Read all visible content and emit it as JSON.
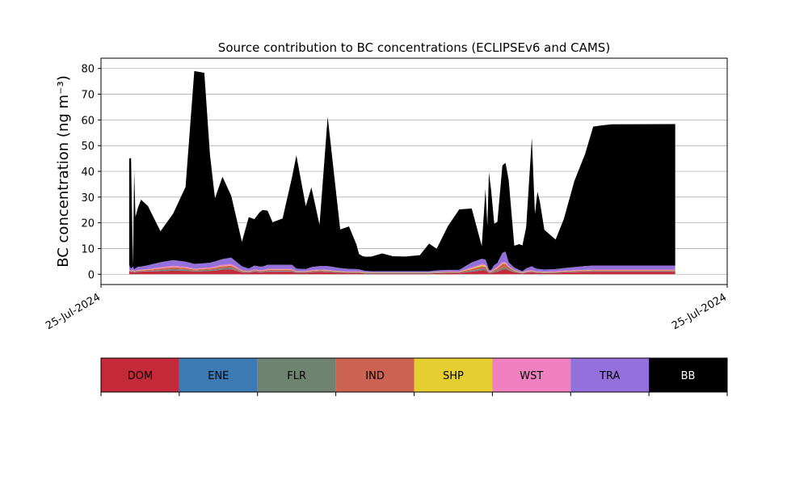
{
  "chart_data": {
    "type": "area",
    "stacked": true,
    "title": "Source contribution to BC concentrations (ECLIPSEv6 and CAMS)",
    "xlabel": "",
    "ylabel": "BC concentration (ng m⁻³)",
    "ylim": [
      -4,
      84
    ],
    "yticks": [
      0,
      10,
      20,
      30,
      40,
      50,
      60,
      70,
      80
    ],
    "xlim": [
      0,
      100
    ],
    "xtick_labels": [
      "25-Jul-2024",
      "25-Jul-2024"
    ],
    "grid": "horizontal",
    "colors": {
      "DOM": "#c52a3a",
      "ENE": "#3c7ab3",
      "FLR": "#6e8471",
      "IND": "#cc6352",
      "SHP": "#e5cf30",
      "WST": "#f080c0",
      "TRA": "#9370db",
      "BB": "#000000"
    },
    "legend": {
      "placement": "bottom-colorbar",
      "labels": [
        "DOM",
        "ENE",
        "FLR",
        "IND",
        "SHP",
        "WST",
        "TRA",
        "BB"
      ]
    },
    "x": [
      4.5,
      4.8,
      5.1,
      5.3,
      5.5,
      5.9,
      6.4,
      7.5,
      9.5,
      11.5,
      13.5,
      14.9,
      16.5,
      17.4,
      18.2,
      19.4,
      20.8,
      22.5,
      23.6,
      24.5,
      25.3,
      25.8,
      26.6,
      27.4,
      29.0,
      30.5,
      31.2,
      32.7,
      33.6,
      34.9,
      36.2,
      38.2,
      39.6,
      40.8,
      41.2,
      41.7,
      42.2,
      43.2,
      44.9,
      46.6,
      48.6,
      50.9,
      52.4,
      53.6,
      55.4,
      57.2,
      59.2,
      60.8,
      61.4,
      61.7,
      61.95,
      62.3,
      62.8,
      63.3,
      64.1,
      64.6,
      65.1,
      66.0,
      66.8,
      67.3,
      67.9,
      68.8,
      69.3,
      69.7,
      70.1,
      70.8,
      72.6,
      73.9,
      75.6,
      77.3,
      78.6,
      80.1,
      81.6,
      91.7
    ],
    "series": [
      {
        "name": "DOM",
        "values": [
          1.2,
          0.8,
          1.0,
          0.6,
          0.8,
          0.9,
          1.0,
          1.1,
          1.2,
          1.4,
          1.3,
          1.1,
          1.2,
          1.3,
          1.4,
          1.8,
          1.9,
          0.7,
          0.6,
          1.0,
          0.8,
          0.8,
          1.0,
          1.0,
          1.0,
          1.0,
          0.6,
          0.6,
          0.8,
          0.9,
          0.8,
          0.6,
          0.5,
          0.5,
          0.5,
          0.4,
          0.3,
          0.3,
          0.3,
          0.3,
          0.3,
          0.3,
          0.3,
          0.4,
          0.5,
          0.5,
          1.0,
          1.5,
          1.5,
          1.0,
          0.5,
          0.5,
          0.8,
          1.0,
          1.8,
          2.0,
          1.5,
          0.8,
          0.5,
          0.3,
          0.6,
          0.8,
          0.6,
          0.5,
          0.5,
          0.4,
          0.5,
          0.7,
          0.8,
          0.9,
          1.0,
          1.0,
          1.0,
          1.0
        ]
      },
      {
        "name": "ENE",
        "values": [
          0.1,
          0.1,
          0.1,
          0.1,
          0.1,
          0.1,
          0.1,
          0.1,
          0.1,
          0.1,
          0.1,
          0.1,
          0.1,
          0.1,
          0.1,
          0.1,
          0.1,
          0.1,
          0.1,
          0.1,
          0.1,
          0.1,
          0.1,
          0.1,
          0.1,
          0.1,
          0.1,
          0.1,
          0.1,
          0.1,
          0.1,
          0.1,
          0.1,
          0.1,
          0.1,
          0.1,
          0.1,
          0.1,
          0.1,
          0.1,
          0.1,
          0.1,
          0.1,
          0.1,
          0.1,
          0.1,
          0.1,
          0.1,
          0.1,
          0.1,
          0.1,
          0.1,
          0.1,
          0.1,
          0.1,
          0.1,
          0.1,
          0.1,
          0.1,
          0.1,
          0.1,
          0.1,
          0.1,
          0.1,
          0.1,
          0.1,
          0.1,
          0.1,
          0.1,
          0.1,
          0.1,
          0.1,
          0.1,
          0.1
        ]
      },
      {
        "name": "FLR",
        "values": [
          0.1,
          0.1,
          0.1,
          0.1,
          0.1,
          0.1,
          0.1,
          0.1,
          0.3,
          0.5,
          0.4,
          0.2,
          0.3,
          0.3,
          0.4,
          0.5,
          0.5,
          0.2,
          0.1,
          0.2,
          0.1,
          0.1,
          0.2,
          0.2,
          0.2,
          0.2,
          0.1,
          0.1,
          0.1,
          0.2,
          0.2,
          0.1,
          0.1,
          0.1,
          0.1,
          0.1,
          0.1,
          0.1,
          0.1,
          0.1,
          0.1,
          0.1,
          0.1,
          0.1,
          0.1,
          0.1,
          0.3,
          0.6,
          0.5,
          0.3,
          0.1,
          0.1,
          0.3,
          0.4,
          0.6,
          0.6,
          0.4,
          0.2,
          0.1,
          0.1,
          0.1,
          0.1,
          0.1,
          0.1,
          0.1,
          0.1,
          0.1,
          0.1,
          0.1,
          0.1,
          0.1,
          0.1,
          0.1,
          0.1
        ]
      },
      {
        "name": "IND",
        "values": [
          0.3,
          0.2,
          0.3,
          0.2,
          0.2,
          0.3,
          0.3,
          0.4,
          0.6,
          0.7,
          0.6,
          0.4,
          0.5,
          0.5,
          0.6,
          0.7,
          0.8,
          0.3,
          0.2,
          0.3,
          0.3,
          0.3,
          0.4,
          0.4,
          0.4,
          0.4,
          0.2,
          0.2,
          0.3,
          0.3,
          0.3,
          0.2,
          0.2,
          0.2,
          0.2,
          0.2,
          0.1,
          0.1,
          0.1,
          0.1,
          0.1,
          0.1,
          0.1,
          0.2,
          0.2,
          0.2,
          0.6,
          0.9,
          0.8,
          0.5,
          0.2,
          0.2,
          0.5,
          0.8,
          1.5,
          1.4,
          0.8,
          0.3,
          0.2,
          0.1,
          0.2,
          0.3,
          0.2,
          0.2,
          0.2,
          0.2,
          0.2,
          0.2,
          0.3,
          0.3,
          0.3,
          0.3,
          0.3,
          0.3
        ]
      },
      {
        "name": "SHP",
        "values": [
          0.1,
          0.1,
          0.1,
          0.1,
          0.1,
          0.1,
          0.1,
          0.1,
          0.1,
          0.1,
          0.1,
          0.1,
          0.1,
          0.1,
          0.1,
          0.1,
          0.1,
          0.1,
          0.1,
          0.1,
          0.1,
          0.1,
          0.1,
          0.1,
          0.1,
          0.1,
          0.1,
          0.1,
          0.1,
          0.1,
          0.1,
          0.1,
          0.1,
          0.1,
          0.1,
          0.1,
          0.1,
          0.1,
          0.1,
          0.1,
          0.1,
          0.1,
          0.1,
          0.1,
          0.1,
          0.1,
          0.3,
          0.5,
          0.4,
          0.2,
          0.1,
          0.1,
          0.1,
          0.2,
          0.2,
          0.2,
          0.1,
          0.1,
          0.1,
          0.1,
          0.1,
          0.1,
          0.1,
          0.1,
          0.1,
          0.1,
          0.1,
          0.1,
          0.1,
          0.1,
          0.1,
          0.1,
          0.1,
          0.1
        ]
      },
      {
        "name": "WST",
        "values": [
          0.2,
          0.1,
          0.2,
          0.1,
          0.1,
          0.2,
          0.2,
          0.2,
          0.4,
          0.5,
          0.4,
          0.3,
          0.3,
          0.3,
          0.4,
          0.5,
          0.6,
          0.2,
          0.1,
          0.2,
          0.2,
          0.2,
          0.3,
          0.3,
          0.3,
          0.3,
          0.1,
          0.1,
          0.2,
          0.2,
          0.2,
          0.1,
          0.1,
          0.1,
          0.1,
          0.1,
          0.1,
          0.1,
          0.1,
          0.1,
          0.1,
          0.1,
          0.1,
          0.1,
          0.1,
          0.1,
          0.3,
          0.4,
          0.4,
          0.2,
          0.1,
          0.1,
          0.3,
          0.4,
          0.6,
          0.5,
          0.3,
          0.1,
          0.1,
          0.1,
          0.2,
          0.2,
          0.1,
          0.1,
          0.1,
          0.1,
          0.2,
          0.2,
          0.2,
          0.2,
          0.2,
          0.2,
          0.2,
          0.2
        ]
      },
      {
        "name": "TRA",
        "values": [
          1.5,
          0.8,
          1.2,
          0.8,
          0.9,
          1.2,
          1.2,
          1.5,
          2.0,
          2.2,
          2.0,
          1.8,
          1.8,
          1.9,
          2.0,
          2.2,
          2.5,
          1.5,
          1.0,
          1.5,
          1.4,
          1.4,
          1.6,
          1.6,
          1.6,
          1.6,
          1.0,
          0.8,
          1.2,
          1.4,
          1.5,
          1.2,
          1.0,
          0.9,
          0.8,
          0.6,
          0.5,
          0.4,
          0.4,
          0.4,
          0.4,
          0.4,
          0.4,
          0.5,
          0.6,
          0.6,
          2.0,
          2.0,
          2.0,
          1.5,
          0.6,
          0.6,
          1.5,
          1.5,
          3.5,
          4.0,
          1.5,
          1.0,
          0.6,
          0.4,
          1.0,
          1.5,
          1.2,
          1.0,
          0.9,
          0.8,
          0.8,
          1.0,
          1.2,
          1.5,
          1.6,
          1.6,
          1.6,
          1.6
        ]
      },
      {
        "name": "BB",
        "values": [
          41.5,
          43.0,
          0.0,
          38.5,
          20.0,
          23.0,
          26.0,
          23.0,
          12.0,
          18.0,
          29.0,
          75.0,
          74.0,
          42.0,
          24.5,
          32.0,
          24.0,
          9.5,
          20.0,
          18.0,
          21.0,
          22.0,
          21.0,
          16.5,
          18.0,
          34.0,
          44.0,
          24.5,
          31.0,
          16.0,
          58.0,
          15.0,
          16.5,
          9.5,
          6.0,
          5.5,
          5.5,
          5.7,
          6.9,
          5.8,
          5.7,
          6.2,
          10.7,
          8.4,
          17.0,
          23.5,
          21.0,
          5.0,
          27.5,
          15.0,
          38.0,
          31.0,
          16.0,
          16.0,
          34.0,
          34.5,
          32.0,
          8.5,
          10.0,
          10.0,
          16.0,
          50.0,
          21.0,
          30.0,
          26.0,
          15.5,
          11.5,
          19.0,
          33.5,
          43.5,
          54.0,
          54.5,
          54.9,
          55.0
        ]
      }
    ]
  }
}
